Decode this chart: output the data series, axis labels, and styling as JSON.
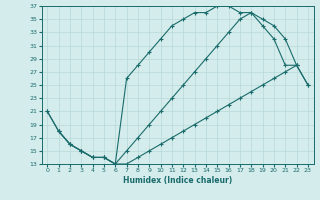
{
  "xlabel": "Humidex (Indice chaleur)",
  "ylabel": "",
  "bg_color": "#d4ecec",
  "line_color": "#1a6b6b",
  "grid_color": "#b8d8d8",
  "xlim": [
    -0.5,
    23.5
  ],
  "ylim": [
    13,
    37
  ],
  "xticks": [
    0,
    1,
    2,
    3,
    4,
    5,
    6,
    7,
    8,
    9,
    10,
    11,
    12,
    13,
    14,
    15,
    16,
    17,
    18,
    19,
    20,
    21,
    22,
    23
  ],
  "yticks": [
    13,
    15,
    17,
    19,
    21,
    23,
    25,
    27,
    29,
    31,
    33,
    35,
    37
  ],
  "curve1_x": [
    0,
    1,
    2,
    3,
    4,
    5,
    6,
    7,
    8,
    9,
    10,
    11,
    12,
    13,
    14,
    15,
    16,
    17,
    18,
    19,
    20,
    21,
    22,
    23
  ],
  "curve1_y": [
    21,
    18,
    16,
    15,
    14,
    14,
    13,
    26,
    28,
    30,
    32,
    34,
    35,
    36,
    36,
    37,
    37,
    36,
    36,
    34,
    32,
    28,
    28,
    25
  ],
  "curve2_x": [
    0,
    1,
    2,
    3,
    4,
    5,
    6,
    7,
    8,
    9,
    10,
    11,
    12,
    13,
    14,
    15,
    16,
    17,
    18,
    19,
    20,
    21,
    22
  ],
  "curve2_y": [
    21,
    18,
    16,
    15,
    14,
    14,
    13,
    15,
    17,
    19,
    21,
    23,
    25,
    27,
    29,
    31,
    33,
    35,
    36,
    35,
    34,
    32,
    28
  ],
  "curve3_x": [
    1,
    2,
    3,
    4,
    5,
    6,
    7,
    8,
    9,
    10,
    11,
    12,
    13,
    14,
    15,
    16,
    17,
    18,
    19,
    20,
    21,
    22,
    23
  ],
  "curve3_y": [
    18,
    16,
    15,
    14,
    14,
    13,
    13,
    14,
    15,
    16,
    17,
    18,
    19,
    20,
    21,
    22,
    23,
    24,
    25,
    26,
    27,
    28,
    25
  ]
}
